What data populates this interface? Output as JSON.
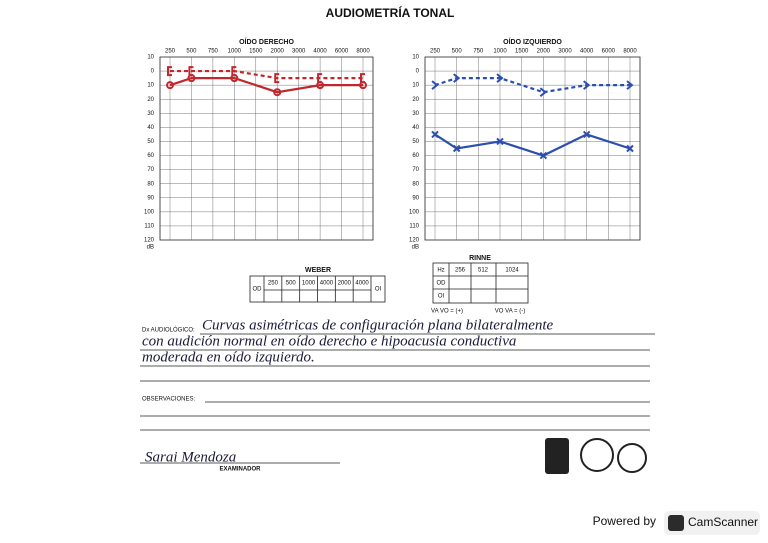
{
  "title": "AUDIOMETRÍA TONAL",
  "chart_data": [
    {
      "type": "line",
      "title": "OÍDO DERECHO",
      "y_unit": "dB",
      "y_inverted": true,
      "grid": true,
      "xticks": [
        250,
        500,
        750,
        1000,
        1500,
        2000,
        3000,
        4000,
        6000,
        8000
      ],
      "ylim": [
        -10,
        120
      ],
      "yticks": [
        {
          "value": -10,
          "label": "10"
        },
        0,
        10,
        20,
        30,
        40,
        50,
        60,
        70,
        80,
        90,
        100,
        110,
        120
      ],
      "series": [
        {
          "color": "#c0282d",
          "dash": false,
          "marker": "circle",
          "x": [
            250,
            500,
            1000,
            2000,
            4000,
            8000
          ],
          "values": [
            10,
            5,
            5,
            15,
            10,
            10
          ]
        },
        {
          "color": "#c0282d",
          "dash": true,
          "marker": "bracket",
          "x": [
            250,
            500,
            1000,
            2000,
            4000,
            8000
          ],
          "values": [
            0,
            0,
            0,
            5,
            5,
            5
          ]
        }
      ]
    },
    {
      "type": "line",
      "title": "OÍDO IZQUIERDO",
      "y_unit": "dB",
      "y_inverted": true,
      "grid": true,
      "xticks": [
        250,
        500,
        750,
        1000,
        1500,
        2000,
        3000,
        4000,
        6000,
        8000
      ],
      "ylim": [
        -10,
        120
      ],
      "yticks": [
        {
          "value": -10,
          "label": "10"
        },
        0,
        10,
        20,
        30,
        40,
        50,
        60,
        70,
        80,
        90,
        100,
        110,
        120
      ],
      "series": [
        {
          "color": "#2b4fb0",
          "dash": true,
          "marker": "chevron",
          "x": [
            250,
            500,
            1000,
            2000,
            4000,
            8000
          ],
          "values": [
            10,
            5,
            5,
            15,
            10,
            10
          ]
        },
        {
          "color": "#2b4fb0",
          "dash": false,
          "marker": "cross",
          "x": [
            250,
            500,
            1000,
            2000,
            4000,
            8000
          ],
          "values": [
            45,
            55,
            50,
            60,
            45,
            55
          ]
        }
      ]
    }
  ],
  "weber": {
    "title": "WEBER",
    "left": "OD",
    "right": "OI",
    "columns": [
      "250",
      "500",
      "1000",
      "4000",
      "2000",
      "4000"
    ]
  },
  "rinne": {
    "title": "RINNE",
    "header": [
      "Hz",
      "256",
      "512",
      "1024"
    ],
    "rows": [
      "OD",
      "OI"
    ],
    "notes": [
      "VA VO = (+)",
      "VO VA = (-)"
    ]
  },
  "diagnosis": {
    "label": "Dx AUDIOLÓGICO:",
    "lines": [
      "Curvas asimétricas de configuración plana bilateralmente",
      "con audición normal en oído derecho e hipoacusia conductiva",
      "moderada en oído izquierdo."
    ]
  },
  "observations": {
    "label": "OBSERVACIONES:"
  },
  "signature": {
    "name": "Sarai Mendoza",
    "role": "EXAMINADOR"
  },
  "footer": {
    "powered": "Powered by",
    "brand": "CamScanner"
  }
}
